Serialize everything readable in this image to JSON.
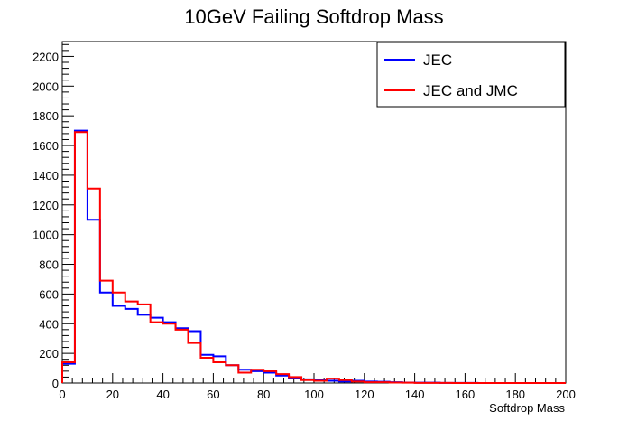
{
  "chart_data": {
    "type": "histogram-step",
    "title": "10GeV Failing Softdrop Mass",
    "xlabel": "Softdrop Mass",
    "ylabel": "",
    "xlim": [
      0,
      200
    ],
    "ylim": [
      0,
      2300
    ],
    "x_ticks": [
      0,
      20,
      40,
      60,
      80,
      100,
      120,
      140,
      160,
      180,
      200
    ],
    "y_ticks": [
      0,
      200,
      400,
      600,
      800,
      1000,
      1200,
      1400,
      1600,
      1800,
      2000,
      2200
    ],
    "bin_edges": [
      0,
      5,
      10,
      15,
      20,
      25,
      30,
      35,
      40,
      45,
      50,
      55,
      60,
      65,
      70,
      75,
      80,
      85,
      90,
      95,
      100,
      105,
      110,
      115,
      120,
      125,
      130,
      135,
      140,
      145,
      150,
      155,
      160,
      165,
      170,
      175,
      180,
      185,
      190,
      195,
      200
    ],
    "legend_position": "top-right",
    "series": [
      {
        "name": "JEC",
        "color": "#0000ff",
        "values": [
          130,
          1700,
          1100,
          610,
          520,
          500,
          460,
          440,
          410,
          370,
          350,
          190,
          180,
          120,
          90,
          80,
          70,
          50,
          35,
          25,
          20,
          15,
          10,
          15,
          10,
          8,
          5,
          3,
          2,
          2,
          1,
          1,
          1,
          0,
          0,
          0,
          0,
          0,
          0,
          0
        ]
      },
      {
        "name": "JEC and JMC",
        "color": "#ff0000",
        "values": [
          140,
          1690,
          1310,
          690,
          610,
          550,
          530,
          410,
          400,
          360,
          270,
          170,
          140,
          120,
          70,
          90,
          80,
          60,
          40,
          20,
          15,
          30,
          20,
          10,
          5,
          5,
          3,
          2,
          1,
          1,
          1,
          0,
          0,
          0,
          0,
          0,
          0,
          0,
          0,
          0
        ]
      }
    ]
  }
}
